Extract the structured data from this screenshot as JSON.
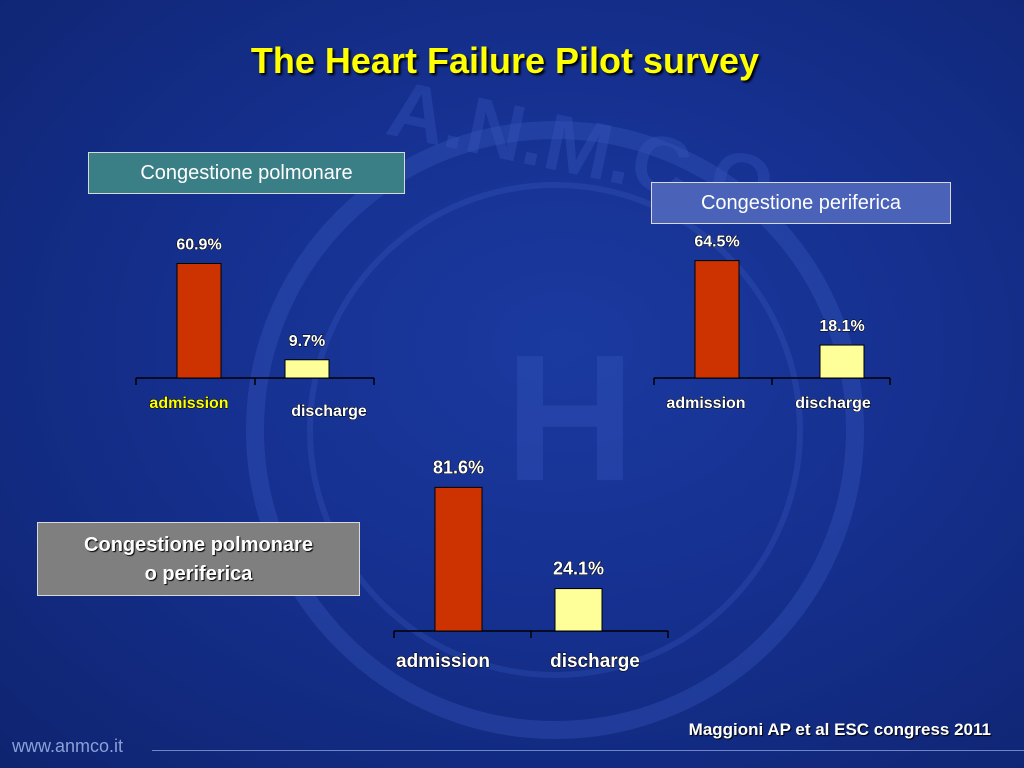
{
  "title": "The Heart Failure Pilot survey",
  "colors": {
    "admission": "#cc3300",
    "discharge": "#ffff99",
    "value_label_white": "#ffffff",
    "value_label_yellow": "#ffff00"
  },
  "chart_data": [
    {
      "type": "bar",
      "title": "Congestione polmonare",
      "categories": [
        "admission",
        "discharge"
      ],
      "values": [
        60.9,
        9.7
      ],
      "value_labels": [
        "60.9%",
        "9.7%"
      ],
      "unit": "%"
    },
    {
      "type": "bar",
      "title": "Congestione periferica",
      "categories": [
        "admission",
        "discharge"
      ],
      "values": [
        64.5,
        18.1
      ],
      "value_labels": [
        "64.5%",
        "18.1%"
      ],
      "unit": "%"
    },
    {
      "type": "bar",
      "title": "Congestione polmonare o periferica",
      "title_lines": [
        "Congestione polmonare",
        "o periferica"
      ],
      "categories": [
        "admission",
        "discharge"
      ],
      "values": [
        81.6,
        24.1
      ],
      "value_labels": [
        "81.6%",
        "24.1%"
      ],
      "unit": "%"
    }
  ],
  "citation": "Maggioni AP et al  ESC congress 2011",
  "footer": {
    "url": "www.anmco.it"
  },
  "watermark": {
    "letters": "A.N.M.C.O",
    "center_letter": "H"
  }
}
